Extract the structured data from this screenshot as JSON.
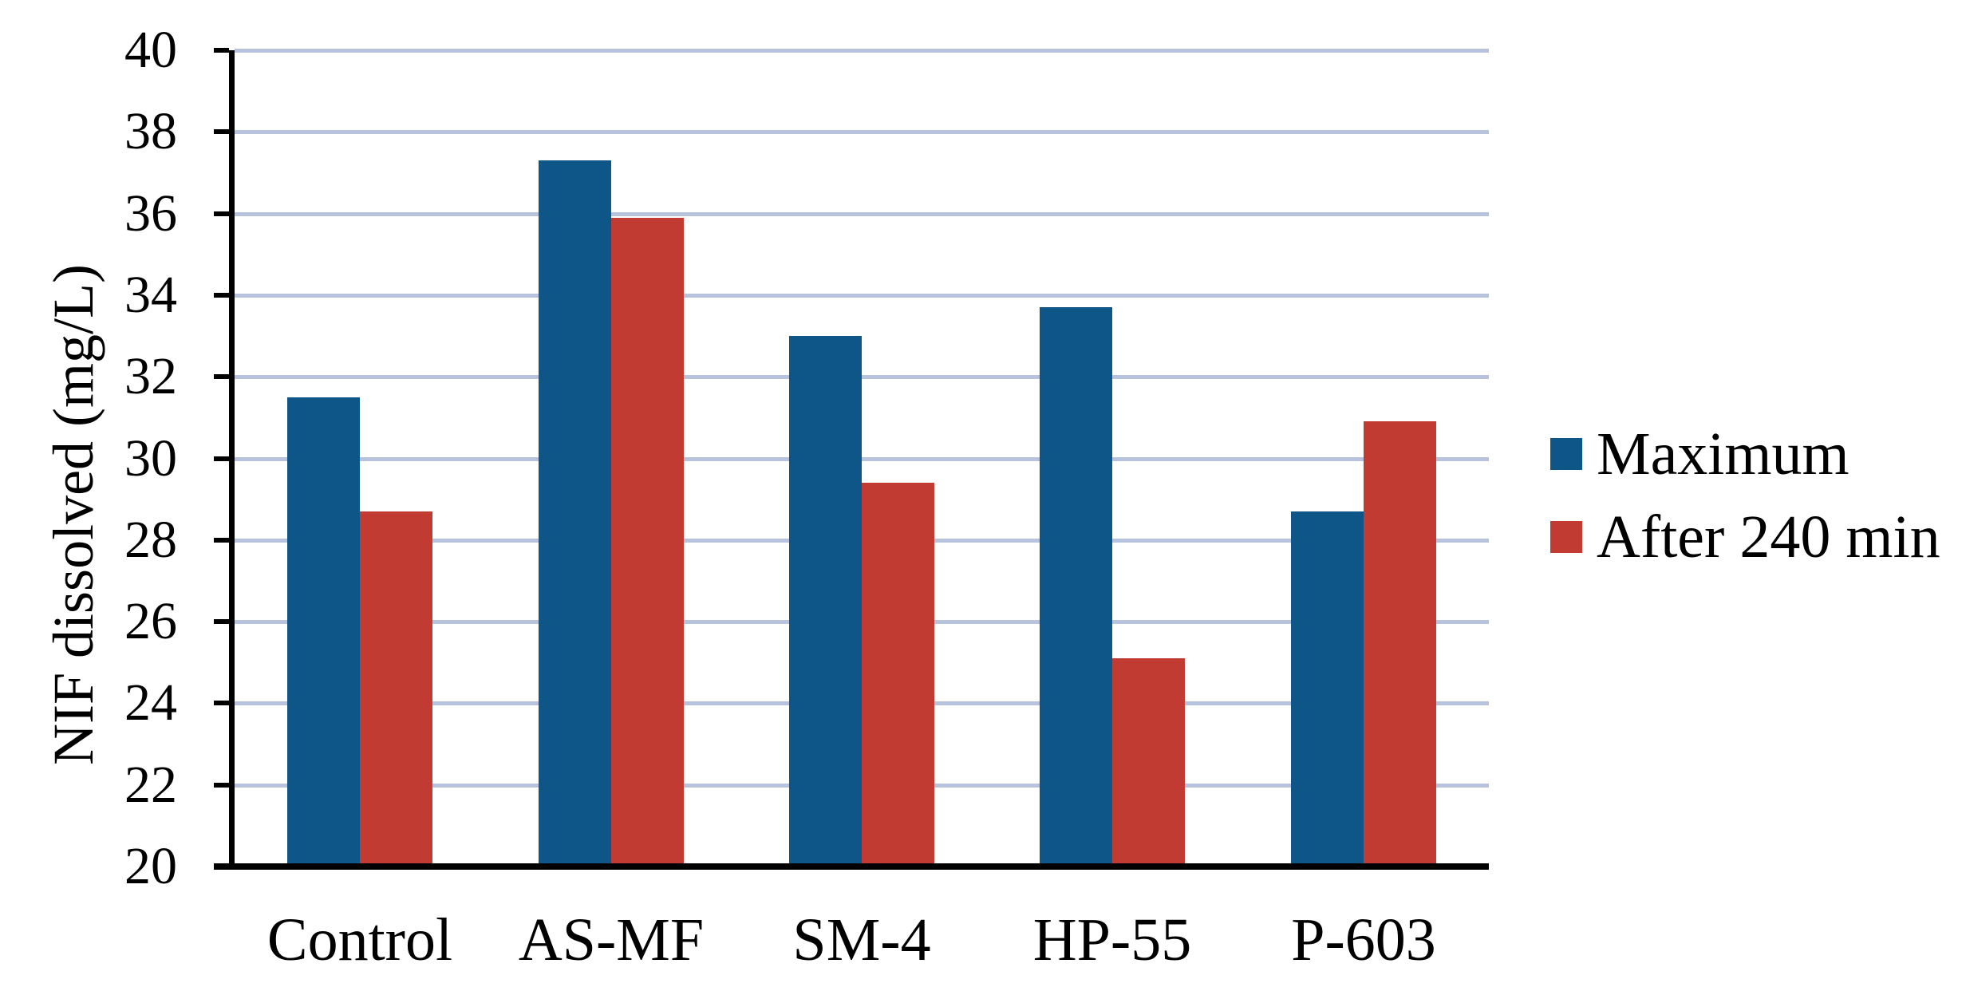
{
  "chart_data": {
    "type": "bar",
    "title": "",
    "xlabel": "",
    "ylabel": "NIF dissolved (mg/L)",
    "categories": [
      "Control",
      "AS-MF",
      "SM-4",
      "HP-55",
      "P-603"
    ],
    "series": [
      {
        "name": "Maximum",
        "color": "#0E5688",
        "values": [
          31.5,
          37.3,
          33.0,
          33.7,
          28.7
        ]
      },
      {
        "name": "After 240 min",
        "color": "#C23B33",
        "values": [
          28.7,
          35.9,
          29.4,
          25.1,
          30.9
        ]
      }
    ],
    "ylim": [
      20,
      40
    ],
    "ytick_step": 2,
    "ytick_labels": [
      "20",
      "22",
      "24",
      "26",
      "28",
      "30",
      "32",
      "34",
      "36",
      "38",
      "40"
    ],
    "grid": true,
    "gridline_color": "#B7C3DD",
    "axis_color": "#000000",
    "background_color": "#FFFFFF",
    "legend_position": "right"
  }
}
